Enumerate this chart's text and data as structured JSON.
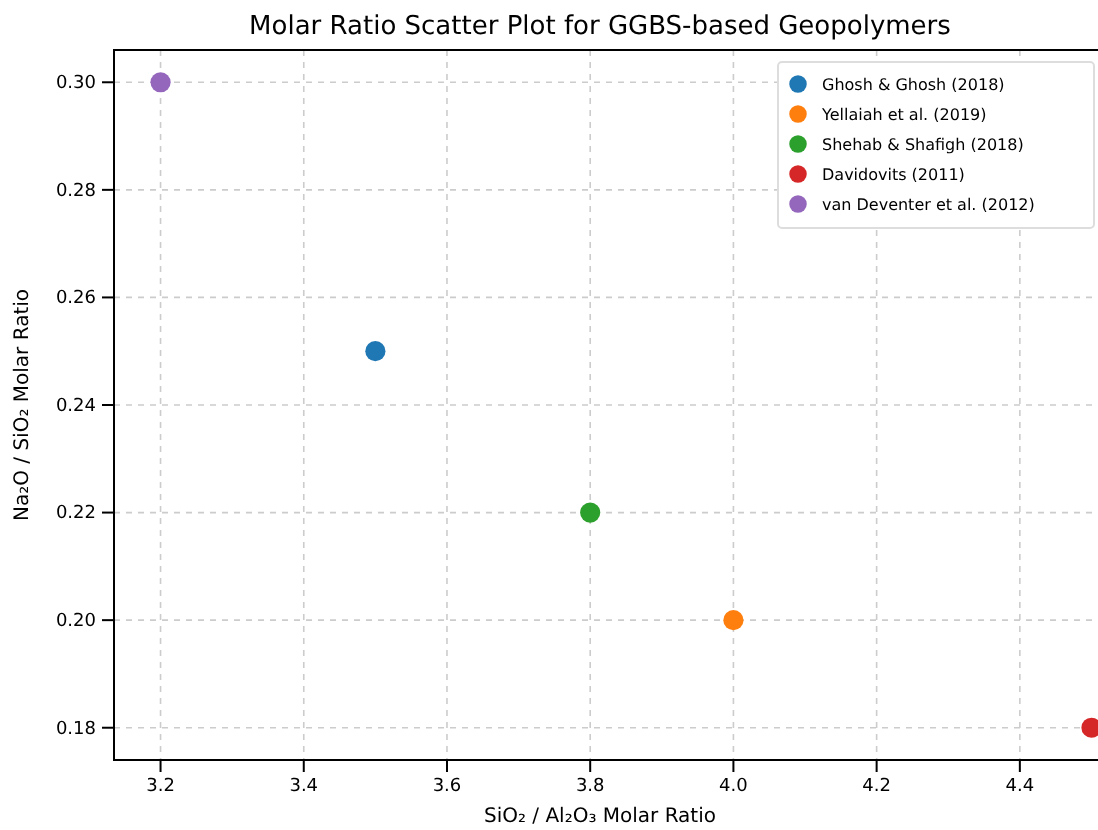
{
  "chart_data": {
    "type": "scatter",
    "title": "Molar Ratio Scatter Plot for GGBS-based Geopolymers",
    "xlabel": "SiO₂ / Al₂O₃ Molar Ratio",
    "ylabel": "Na₂O / SiO₂ Molar Ratio",
    "series": [
      {
        "name": "Ghosh & Ghosh (2018)",
        "color": "#1f77b4",
        "x": [
          3.5
        ],
        "values": [
          0.25
        ]
      },
      {
        "name": "Yellaiah et al. (2019)",
        "color": "#ff7f0e",
        "x": [
          4.0
        ],
        "values": [
          0.2
        ]
      },
      {
        "name": "Shehab & Shafigh (2018)",
        "color": "#2ca02c",
        "x": [
          3.8
        ],
        "values": [
          0.22
        ]
      },
      {
        "name": "Davidovits (2011)",
        "color": "#d62728",
        "x": [
          4.5
        ],
        "values": [
          0.18
        ]
      },
      {
        "name": "van Deventer et al. (2012)",
        "color": "#9467bd",
        "x": [
          3.2
        ],
        "values": [
          0.3
        ]
      }
    ],
    "xlim": [
      3.135,
      4.565
    ],
    "ylim": [
      0.174,
      0.306
    ],
    "xticks": [
      {
        "value": 3.2,
        "label": "3.2"
      },
      {
        "value": 3.4,
        "label": "3.4"
      },
      {
        "value": 3.6,
        "label": "3.6"
      },
      {
        "value": 3.8,
        "label": "3.8"
      },
      {
        "value": 4.0,
        "label": "4.0"
      },
      {
        "value": 4.2,
        "label": "4.2"
      },
      {
        "value": 4.4,
        "label": "4.4"
      }
    ],
    "yticks": [
      {
        "value": 0.18,
        "label": "0.18"
      },
      {
        "value": 0.2,
        "label": "0.20"
      },
      {
        "value": 0.22,
        "label": "0.22"
      },
      {
        "value": 0.24,
        "label": "0.24"
      },
      {
        "value": 0.26,
        "label": "0.26"
      },
      {
        "value": 0.28,
        "label": "0.28"
      },
      {
        "value": 0.3,
        "label": "0.30"
      }
    ],
    "grid": true,
    "legend": "top right",
    "marker": "circle"
  }
}
